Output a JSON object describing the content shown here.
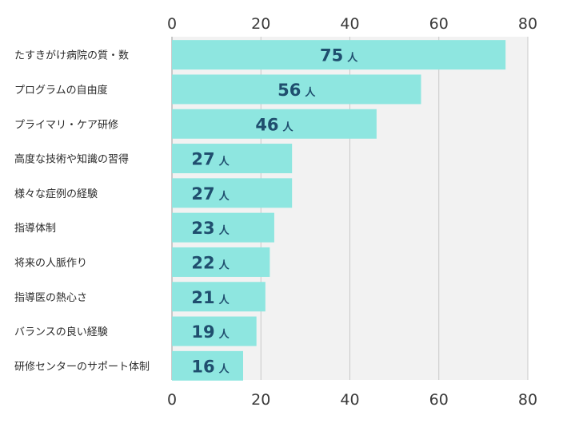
{
  "chart_data": {
    "type": "bar",
    "orientation": "horizontal",
    "categories": [
      "たすきがけ病院の質・数",
      "プログラムの自由度",
      "プライマリ・ケア研修",
      "高度な技術や知識の習得",
      "様々な症例の経験",
      "指導体制",
      "将来の人脈作り",
      "指導医の熱心さ",
      "バランスの良い経験",
      "研修センターのサポート体制"
    ],
    "values": [
      75,
      56,
      46,
      27,
      27,
      23,
      22,
      21,
      19,
      16
    ],
    "unit": "人",
    "xlim": [
      0,
      80
    ],
    "ticks": [
      0,
      20,
      40,
      60,
      80
    ],
    "grid": true,
    "axis_labels_top_and_bottom": true,
    "colors": {
      "bar": "#8ee6e0",
      "value_text": "#1f4e6e",
      "plot_background": "#f2f2f2",
      "grid": "#c8c8c8"
    }
  }
}
